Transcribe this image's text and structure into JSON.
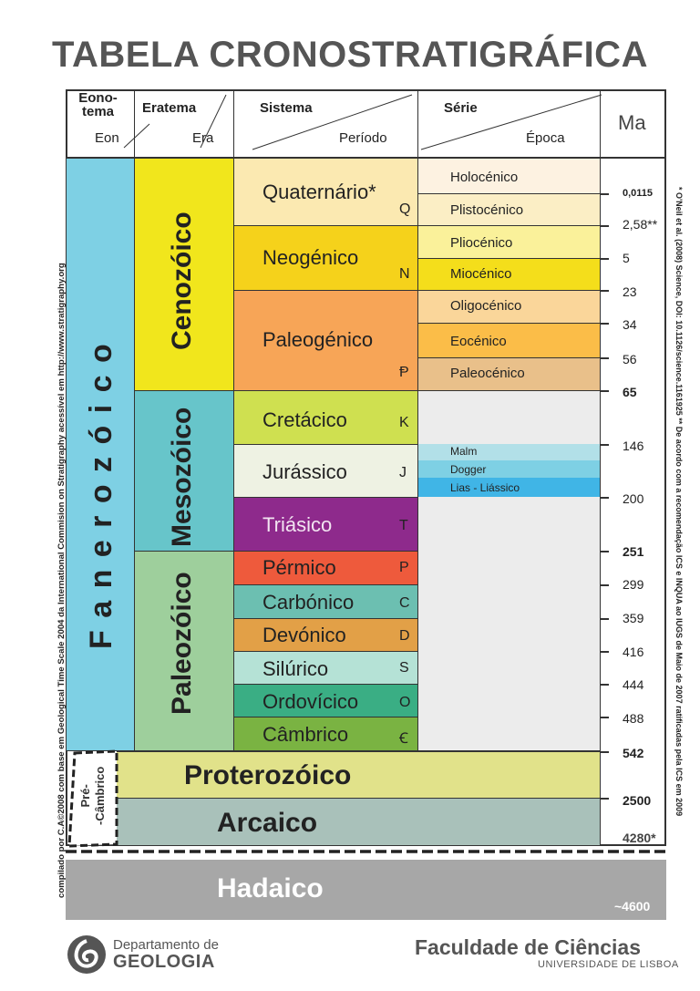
{
  "title": "TABELA CRONOSTRATIGRÁFICA",
  "headers": {
    "eonotema": "Eono-\ntema",
    "eon": "Eon",
    "eratema": "Eratema",
    "era": "Era",
    "sistema": "Sistema",
    "periodo": "Período",
    "serie": "Série",
    "epoca": "Época",
    "ma": "Ma"
  },
  "eons": {
    "fanerozoico": "F a n e r o z ó i c o",
    "precambrico": "Pré-\n-Câmbrico",
    "proterozoico": "Proterozóico",
    "arcaico": "Arcaico",
    "hadaico": "Hadaico"
  },
  "eras": {
    "cenozoico": "Cenozóico",
    "mesozoico": "Mesozóico",
    "paleozoico": "Paleozóico"
  },
  "periods": [
    {
      "name": "Quaternário*",
      "symbol": "Q"
    },
    {
      "name": "Neogénico",
      "symbol": "N"
    },
    {
      "name": "Paleogénico",
      "symbol": "Ᵽ"
    },
    {
      "name": "Cretácico",
      "symbol": "K"
    },
    {
      "name": "Jurássico",
      "symbol": "J"
    },
    {
      "name": "Triásico",
      "symbol": "T"
    },
    {
      "name": "Pérmico",
      "symbol": "P"
    },
    {
      "name": "Carbónico",
      "symbol": "C"
    },
    {
      "name": "Devónico",
      "symbol": "D"
    },
    {
      "name": "Silúrico",
      "symbol": "S"
    },
    {
      "name": "Ordovícico",
      "symbol": "O"
    },
    {
      "name": "Câmbrico",
      "symbol": "Ꞓ"
    }
  ],
  "epochs": [
    "Holocénico",
    "Plistocénico",
    "Pliocénico",
    "Miocénico",
    "Oligocénico",
    "Eocénico",
    "Paleocénico"
  ],
  "jurassic_series": [
    "Malm",
    "Dogger",
    "Lias - Liássico"
  ],
  "ages": [
    "0,0115",
    "2,58**",
    "5",
    "23",
    "34",
    "56",
    "65",
    "146",
    "200",
    "251",
    "299",
    "359",
    "416",
    "444",
    "488",
    "542",
    "2500",
    "4280*",
    "~4600"
  ],
  "side_left": "compilado por  C.A©2008  com base em Geological Time Scale 2004 da International Commision on Stratigraphy acessível em http://www.stratigraphy.org",
  "side_right": "* O'Neil et al. (2008) Science, DOI: 10.1126/science.1161925          ** De acordo com a recomendação ICS e INQUA ao IUGS de Maio de 2007 ratificadas pela ICS em 2009",
  "footer": {
    "dept_line1": "Departamento de",
    "dept_line2": "GEOLOGIA",
    "faculty": "Faculdade de Ciências",
    "university": "UNIVERSIDADE DE LISBOA"
  },
  "colors": {
    "fanerozoico": "#7ed0e4",
    "cenozoico": "#f1e61c",
    "mesozoico": "#67c5ca",
    "paleozoico": "#9ecf9c",
    "proterozoico": "#e1e28a",
    "arcaico": "#a9c1ba",
    "hadaico": "#a7a7a7"
  }
}
